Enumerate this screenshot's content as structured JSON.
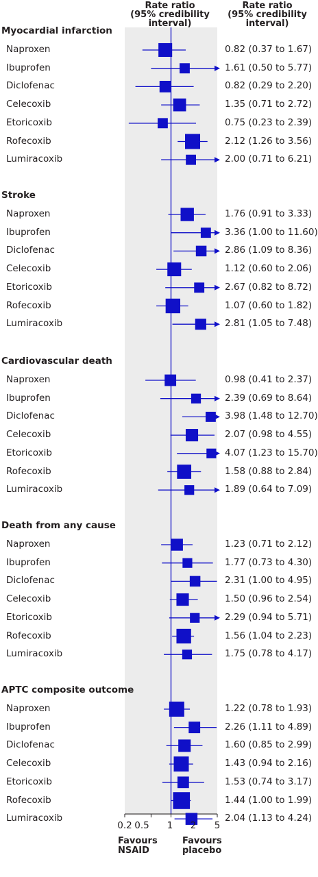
{
  "header": {
    "middle": [
      "Rate ratio",
      "(95% credibility",
      "interval)"
    ],
    "right": [
      "Rate ratio",
      "(95% credibility",
      "interval)"
    ]
  },
  "axis": {
    "ticks": [
      "0.2",
      "0.5",
      "1",
      "2",
      "5"
    ],
    "favours_left": [
      "Favours",
      "NSAID"
    ],
    "favours_right": [
      "Favours",
      "placebo"
    ]
  },
  "colors": {
    "marker": "#1010c8",
    "band": "#ececec",
    "text": "#231f20"
  },
  "chart_data": {
    "type": "forest",
    "x_scale": "log",
    "x_range": [
      0.2,
      5
    ],
    "x_ticks": [
      0.2,
      0.5,
      1,
      2,
      5
    ],
    "reference_line": 1,
    "groups": [
      {
        "name": "Myocardial infarction",
        "rows": [
          {
            "label": "Naproxen",
            "est": 0.82,
            "lo": 0.37,
            "hi": 1.67,
            "weight": 0.85,
            "text": "0.82 (0.37 to 1.67)"
          },
          {
            "label": "Ibuprofen",
            "est": 1.61,
            "lo": 0.5,
            "hi": 5.77,
            "weight": 0.45,
            "text": "1.61 (0.50 to 5.77)"
          },
          {
            "label": "Diclofenac",
            "est": 0.82,
            "lo": 0.29,
            "hi": 2.2,
            "weight": 0.6,
            "text": "0.82 (0.29 to 2.20)"
          },
          {
            "label": "Celecoxib",
            "est": 1.35,
            "lo": 0.71,
            "hi": 2.72,
            "weight": 0.75,
            "text": "1.35 (0.71 to 2.72)"
          },
          {
            "label": "Etoricoxib",
            "est": 0.75,
            "lo": 0.23,
            "hi": 2.39,
            "weight": 0.45,
            "text": "0.75 (0.23 to 2.39)"
          },
          {
            "label": "Rofecoxib",
            "est": 2.12,
            "lo": 1.26,
            "hi": 3.56,
            "weight": 1.0,
            "text": "2.12 (1.26 to 3.56)"
          },
          {
            "label": "Lumiracoxib",
            "est": 2.0,
            "lo": 0.71,
            "hi": 6.21,
            "weight": 0.45,
            "text": "2.00 (0.71 to 6.21)"
          }
        ]
      },
      {
        "name": "Stroke",
        "rows": [
          {
            "label": "Naproxen",
            "est": 1.76,
            "lo": 0.91,
            "hi": 3.33,
            "weight": 0.8,
            "text": "1.76 (0.91 to 3.33)"
          },
          {
            "label": "Ibuprofen",
            "est": 3.36,
            "lo": 1.0,
            "hi": 11.6,
            "weight": 0.45,
            "text": "3.36 (1.00 to 11.60)"
          },
          {
            "label": "Diclofenac",
            "est": 2.86,
            "lo": 1.09,
            "hi": 8.36,
            "weight": 0.5,
            "text": "2.86 (1.09 to 8.36)"
          },
          {
            "label": "Celecoxib",
            "est": 1.12,
            "lo": 0.6,
            "hi": 2.06,
            "weight": 0.85,
            "text": "1.12 (0.60 to 2.06)"
          },
          {
            "label": "Etoricoxib",
            "est": 2.67,
            "lo": 0.82,
            "hi": 8.72,
            "weight": 0.45,
            "text": "2.67 (0.82 to 8.72)"
          },
          {
            "label": "Rofecoxib",
            "est": 1.07,
            "lo": 0.6,
            "hi": 1.82,
            "weight": 0.95,
            "text": "1.07 (0.60 to 1.82)"
          },
          {
            "label": "Lumiracoxib",
            "est": 2.81,
            "lo": 1.05,
            "hi": 7.48,
            "weight": 0.55,
            "text": "2.81 (1.05 to 7.48)"
          }
        ]
      },
      {
        "name": "Cardiovascular death",
        "rows": [
          {
            "label": "Naproxen",
            "est": 0.98,
            "lo": 0.41,
            "hi": 2.37,
            "weight": 0.6,
            "text": "0.98 (0.41 to 2.37)"
          },
          {
            "label": "Ibuprofen",
            "est": 2.39,
            "lo": 0.69,
            "hi": 8.64,
            "weight": 0.4,
            "text": "2.39 (0.69 to 8.64)"
          },
          {
            "label": "Diclofenac",
            "est": 3.98,
            "lo": 1.48,
            "hi": 12.7,
            "weight": 0.45,
            "text": "3.98 (1.48 to 12.70)"
          },
          {
            "label": "Celecoxib",
            "est": 2.07,
            "lo": 0.98,
            "hi": 4.55,
            "weight": 0.7,
            "text": "2.07 (0.98 to 4.55)"
          },
          {
            "label": "Etoricoxib",
            "est": 4.07,
            "lo": 1.23,
            "hi": 15.7,
            "weight": 0.4,
            "text": "4.07 (1.23 to 15.70)"
          },
          {
            "label": "Rofecoxib",
            "est": 1.58,
            "lo": 0.88,
            "hi": 2.84,
            "weight": 0.9,
            "text": "1.58 (0.88 to 2.84)"
          },
          {
            "label": "Lumiracoxib",
            "est": 1.89,
            "lo": 0.64,
            "hi": 7.09,
            "weight": 0.4,
            "text": "1.89 (0.64 to 7.09)"
          }
        ]
      },
      {
        "name": "Death from any cause",
        "rows": [
          {
            "label": "Naproxen",
            "est": 1.23,
            "lo": 0.71,
            "hi": 2.12,
            "weight": 0.65,
            "text": "1.23 (0.71 to 2.12)"
          },
          {
            "label": "Ibuprofen",
            "est": 1.77,
            "lo": 0.73,
            "hi": 4.3,
            "weight": 0.4,
            "text": "1.77 (0.73 to 4.30)"
          },
          {
            "label": "Diclofenac",
            "est": 2.31,
            "lo": 1.0,
            "hi": 4.95,
            "weight": 0.5,
            "text": "2.31 (1.00 to 4.95)"
          },
          {
            "label": "Celecoxib",
            "est": 1.5,
            "lo": 0.96,
            "hi": 2.54,
            "weight": 0.7,
            "text": "1.50 (0.96 to 2.54)"
          },
          {
            "label": "Etoricoxib",
            "est": 2.29,
            "lo": 0.94,
            "hi": 5.71,
            "weight": 0.4,
            "text": "2.29 (0.94 to 5.71)"
          },
          {
            "label": "Rofecoxib",
            "est": 1.56,
            "lo": 1.04,
            "hi": 2.23,
            "weight": 0.95,
            "text": "1.56 (1.04 to 2.23)"
          },
          {
            "label": "Lumiracoxib",
            "est": 1.75,
            "lo": 0.78,
            "hi": 4.17,
            "weight": 0.4,
            "text": "1.75 (0.78 to 4.17)"
          }
        ]
      },
      {
        "name": "APTC composite outcome",
        "rows": [
          {
            "label": "Naproxen",
            "est": 1.22,
            "lo": 0.78,
            "hi": 1.93,
            "weight": 1.0,
            "text": "1.22 (0.78 to 1.93)"
          },
          {
            "label": "Ibuprofen",
            "est": 2.26,
            "lo": 1.11,
            "hi": 4.89,
            "weight": 0.6,
            "text": "2.26 (1.11 to 4.89)"
          },
          {
            "label": "Diclofenac",
            "est": 1.6,
            "lo": 0.85,
            "hi": 2.99,
            "weight": 0.7,
            "text": "1.60 (0.85 to 2.99)"
          },
          {
            "label": "Celecoxib",
            "est": 1.43,
            "lo": 0.94,
            "hi": 2.16,
            "weight": 1.0,
            "text": "1.43 (0.94 to 2.16)"
          },
          {
            "label": "Etoricoxib",
            "est": 1.53,
            "lo": 0.74,
            "hi": 3.17,
            "weight": 0.6,
            "text": "1.53 (0.74 to 3.17)"
          },
          {
            "label": "Rofecoxib",
            "est": 1.44,
            "lo": 1.0,
            "hi": 1.99,
            "weight": 1.2,
            "text": "1.44 (1.00 to 1.99)"
          },
          {
            "label": "Lumiracoxib",
            "est": 2.04,
            "lo": 1.13,
            "hi": 4.24,
            "weight": 0.65,
            "text": "2.04 (1.13 to 4.24)"
          }
        ]
      }
    ]
  }
}
